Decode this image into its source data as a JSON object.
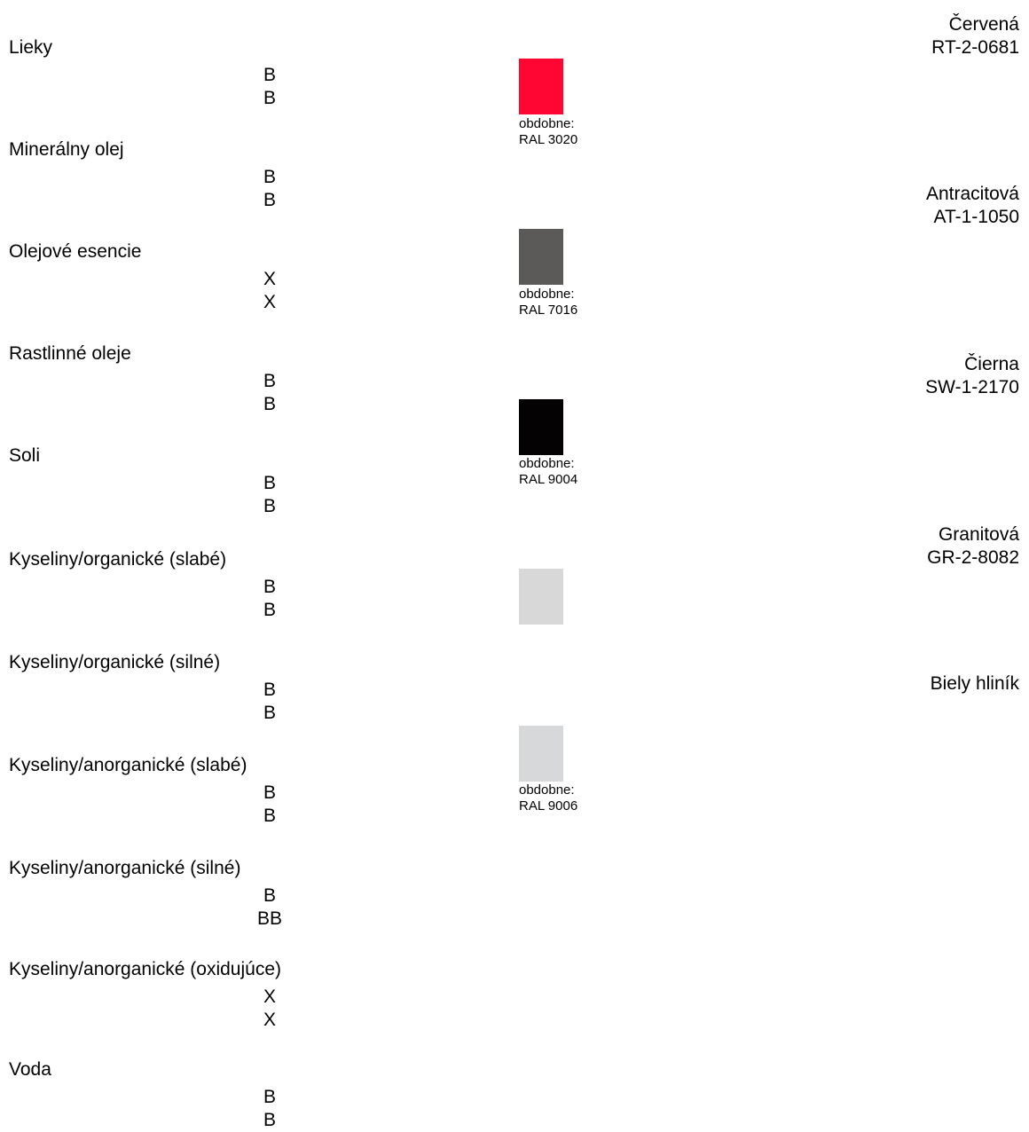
{
  "substances": [
    {
      "name": "Lieky",
      "ratings": [
        "B",
        "B"
      ]
    },
    {
      "name": "Minerálny olej",
      "ratings": [
        "B",
        "B"
      ]
    },
    {
      "name": "Olejové esencie",
      "ratings": [
        "X",
        "X"
      ]
    },
    {
      "name": "Rastlinné oleje",
      "ratings": [
        "B",
        "B"
      ]
    },
    {
      "name": "Soli",
      "ratings": [
        "B",
        "B"
      ]
    },
    {
      "name": "Kyseliny/organické (slabé)",
      "ratings": [
        "B",
        "B"
      ]
    },
    {
      "name": "Kyseliny/organické (silné)",
      "ratings": [
        "B",
        "B"
      ]
    },
    {
      "name": "Kyseliny/anorganické (slabé)",
      "ratings": [
        "B",
        "B"
      ]
    },
    {
      "name": "Kyseliny/anorganické (silné)",
      "ratings": [
        "B",
        "BB"
      ]
    },
    {
      "name": "Kyseliny/anorganické (oxidujúce)",
      "ratings": [
        "X",
        "X"
      ]
    },
    {
      "name": "Voda",
      "ratings": [
        "B",
        "B"
      ]
    }
  ],
  "colors": [
    {
      "name": "Červená",
      "code": "RT-2-0681",
      "swatch": "#ff0633",
      "note_prefix": "obdobne:",
      "note_ral": "RAL 3020"
    },
    {
      "name": "Antracitová",
      "code": "AT-1-1050",
      "swatch": "#5c5a58",
      "note_prefix": "obdobne:",
      "note_ral": "RAL 7016"
    },
    {
      "name": "Čierna",
      "code": "SW-1-2170",
      "swatch": "#050203",
      "note_prefix": "obdobne:",
      "note_ral": "RAL 9004"
    },
    {
      "name": "Granitová",
      "code": "GR-2-8082",
      "swatch": "#d8d8d8"
    },
    {
      "name": "Biely hliník",
      "swatch": "#d6d8da",
      "note_prefix": "obdobne:",
      "note_ral": "RAL 9006"
    }
  ]
}
